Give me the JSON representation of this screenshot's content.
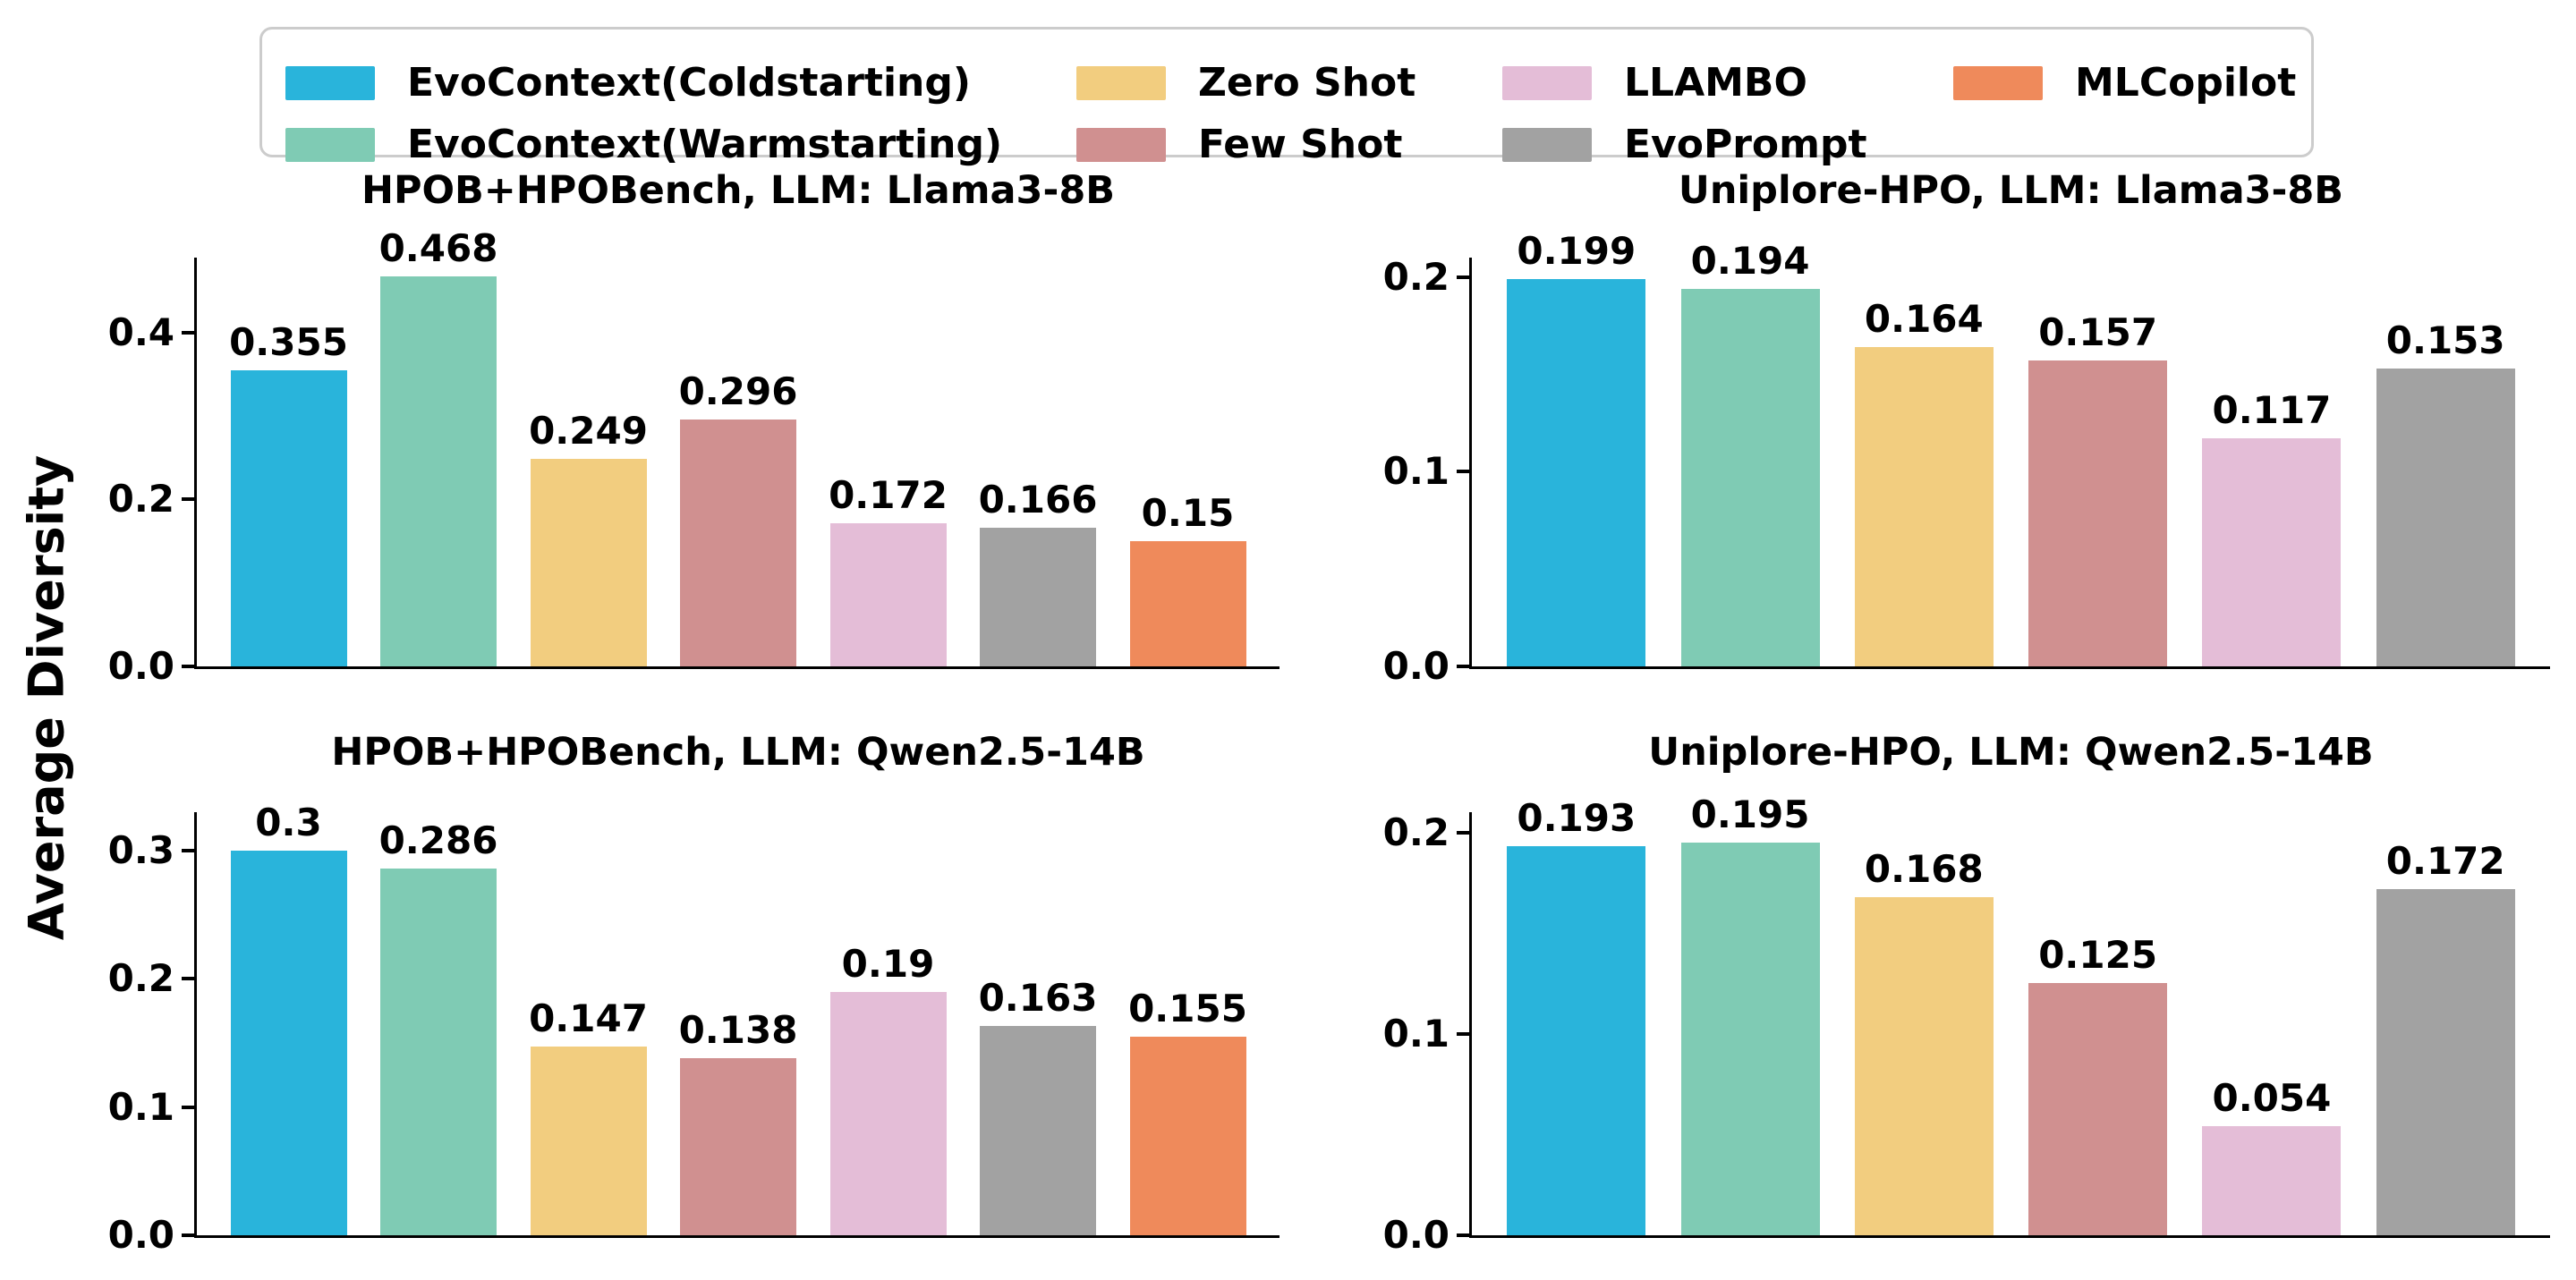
{
  "figure": {
    "ylabel": "Average Diversity",
    "background": "#ffffff"
  },
  "legend": {
    "position": "top",
    "border_color": "#cccccc",
    "entries": [
      {
        "label": "EvoContext(Coldstarting)",
        "color": "#29B4DB"
      },
      {
        "label": "EvoContext(Warmstarting)",
        "color": "#7FCBB4"
      },
      {
        "label": "Zero Shot",
        "color": "#F2CD7F"
      },
      {
        "label": "Few Shot",
        "color": "#D09090"
      },
      {
        "label": "LLAMBO",
        "color": "#E4BDD7"
      },
      {
        "label": "EvoPrompt",
        "color": "#A2A2A2"
      },
      {
        "label": "MLCopilot",
        "color": "#EF8A5B"
      }
    ],
    "columns": [
      [
        0,
        1
      ],
      [
        2,
        3
      ],
      [
        4,
        5
      ],
      [
        6
      ]
    ]
  },
  "chart_data": [
    {
      "type": "bar",
      "title": "HPOB+HPOBench, LLM: Llama3-8B",
      "categories": [
        "EvoContext(Coldstarting)",
        "EvoContext(Warmstarting)",
        "Zero Shot",
        "Few Shot",
        "LLAMBO",
        "EvoPrompt",
        "MLCopilot"
      ],
      "values": [
        0.355,
        0.468,
        0.249,
        0.296,
        0.172,
        0.166,
        0.15
      ],
      "value_labels": [
        "0.355",
        "0.468",
        "0.249",
        "0.296",
        "0.172",
        "0.166",
        "0.15"
      ],
      "ylabel": "Average Diversity",
      "ylim": [
        0,
        0.49
      ],
      "yticks": [
        "0.0",
        "0.2",
        "0.4"
      ],
      "grid": false
    },
    {
      "type": "bar",
      "title": "Uniplore-HPO, LLM: Llama3-8B",
      "categories": [
        "EvoContext(Coldstarting)",
        "EvoContext(Warmstarting)",
        "Zero Shot",
        "Few Shot",
        "LLAMBO",
        "EvoPrompt"
      ],
      "values": [
        0.199,
        0.194,
        0.164,
        0.157,
        0.117,
        0.153
      ],
      "value_labels": [
        "0.199",
        "0.194",
        "0.164",
        "0.157",
        "0.117",
        "0.153"
      ],
      "ylabel": "Average Diversity",
      "ylim": [
        0,
        0.21
      ],
      "yticks": [
        "0.0",
        "0.1",
        "0.2"
      ],
      "grid": false
    },
    {
      "type": "bar",
      "title": "HPOB+HPOBench, LLM: Qwen2.5-14B",
      "categories": [
        "EvoContext(Coldstarting)",
        "EvoContext(Warmstarting)",
        "Zero Shot",
        "Few Shot",
        "LLAMBO",
        "EvoPrompt",
        "MLCopilot"
      ],
      "values": [
        0.3,
        0.286,
        0.147,
        0.138,
        0.19,
        0.163,
        0.155
      ],
      "value_labels": [
        "0.3",
        "0.286",
        "0.147",
        "0.138",
        "0.19",
        "0.163",
        "0.155"
      ],
      "ylabel": "Average Diversity",
      "ylim": [
        0,
        0.33
      ],
      "yticks": [
        "0.0",
        "0.1",
        "0.2",
        "0.3"
      ],
      "grid": false
    },
    {
      "type": "bar",
      "title": "Uniplore-HPO, LLM: Qwen2.5-14B",
      "categories": [
        "EvoContext(Coldstarting)",
        "EvoContext(Warmstarting)",
        "Zero Shot",
        "Few Shot",
        "LLAMBO",
        "EvoPrompt"
      ],
      "values": [
        0.193,
        0.195,
        0.168,
        0.125,
        0.054,
        0.172
      ],
      "value_labels": [
        "0.193",
        "0.195",
        "0.168",
        "0.125",
        "0.054",
        "0.172"
      ],
      "ylabel": "Average Diversity",
      "ylim": [
        0,
        0.21
      ],
      "yticks": [
        "0.0",
        "0.1",
        "0.2"
      ],
      "grid": false
    }
  ]
}
